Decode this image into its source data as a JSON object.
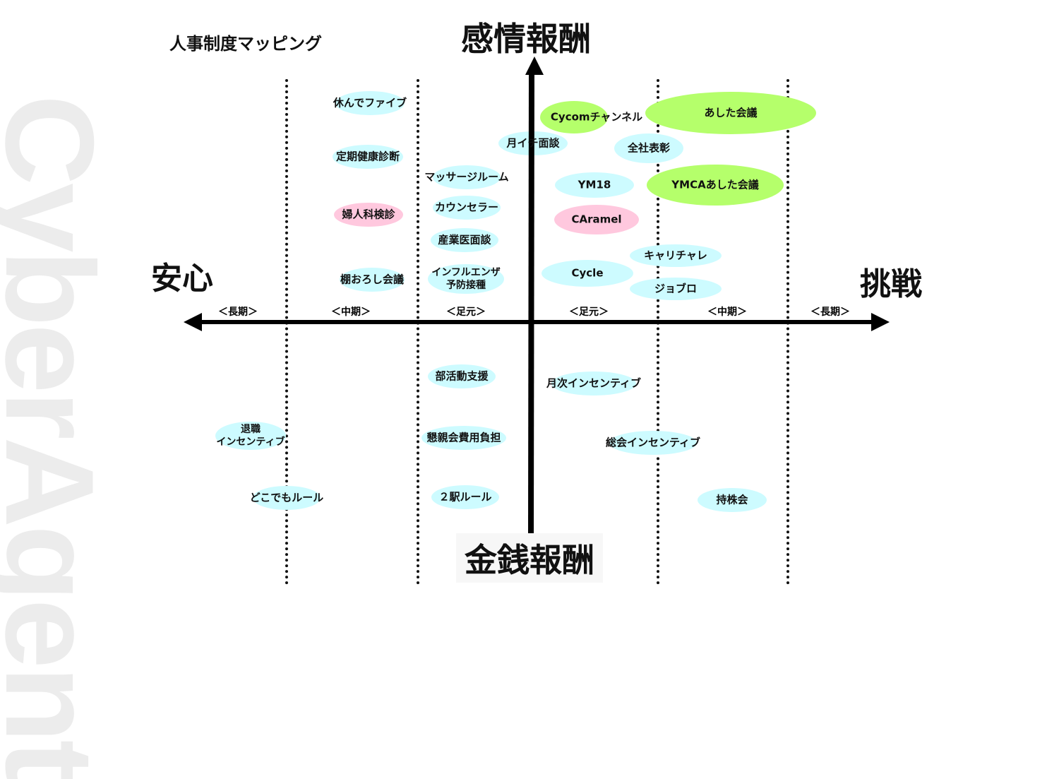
{
  "watermark": "CyberAgent",
  "title": "人事制度マッピング",
  "axes": {
    "top": "感情報酬",
    "bottom": "金銭報酬",
    "left": "安心",
    "right": "挑戦"
  },
  "periods": [
    "＜長期＞",
    "＜中期＞",
    "＜足元＞",
    "＜足元＞",
    "＜中期＞",
    "＜長期＞"
  ],
  "colors": {
    "cyan": "#cdfbff",
    "green": "#b5ff6b",
    "pink": "#ffc8de"
  },
  "items": [
    {
      "label": "休んでファイブ",
      "color": "cyan"
    },
    {
      "label": "定期健康診断",
      "color": "cyan"
    },
    {
      "label": "婦人科検診",
      "color": "pink"
    },
    {
      "label": "棚おろし会議",
      "color": "cyan"
    },
    {
      "label": "マッサージルーム",
      "color": "cyan"
    },
    {
      "label": "カウンセラー",
      "color": "cyan"
    },
    {
      "label": "産業医面談",
      "color": "cyan"
    },
    {
      "label": "インフルエンザ\n予防接種",
      "color": "cyan"
    },
    {
      "label": "月イチ面談",
      "color": "cyan"
    },
    {
      "label": "Cycomチャンネル",
      "color": "green"
    },
    {
      "label": "あした会議",
      "color": "green"
    },
    {
      "label": "全社表彰",
      "color": "cyan"
    },
    {
      "label": "YM18",
      "color": "cyan"
    },
    {
      "label": "YMCAあした会議",
      "color": "green"
    },
    {
      "label": "CAramel",
      "color": "pink"
    },
    {
      "label": "キャリチャレ",
      "color": "cyan"
    },
    {
      "label": "Cycle",
      "color": "cyan"
    },
    {
      "label": "ジョブロ",
      "color": "cyan"
    },
    {
      "label": "部活動支援",
      "color": "cyan"
    },
    {
      "label": "月次インセンティブ",
      "color": "cyan"
    },
    {
      "label": "懇親会費用負担",
      "color": "cyan"
    },
    {
      "label": "総会インセンティブ",
      "color": "cyan"
    },
    {
      "label": "退職\nインセンティブ",
      "color": "cyan"
    },
    {
      "label": "どこでもルール",
      "color": "cyan"
    },
    {
      "label": "２駅ルール",
      "color": "cyan"
    },
    {
      "label": "持株会",
      "color": "cyan"
    }
  ]
}
